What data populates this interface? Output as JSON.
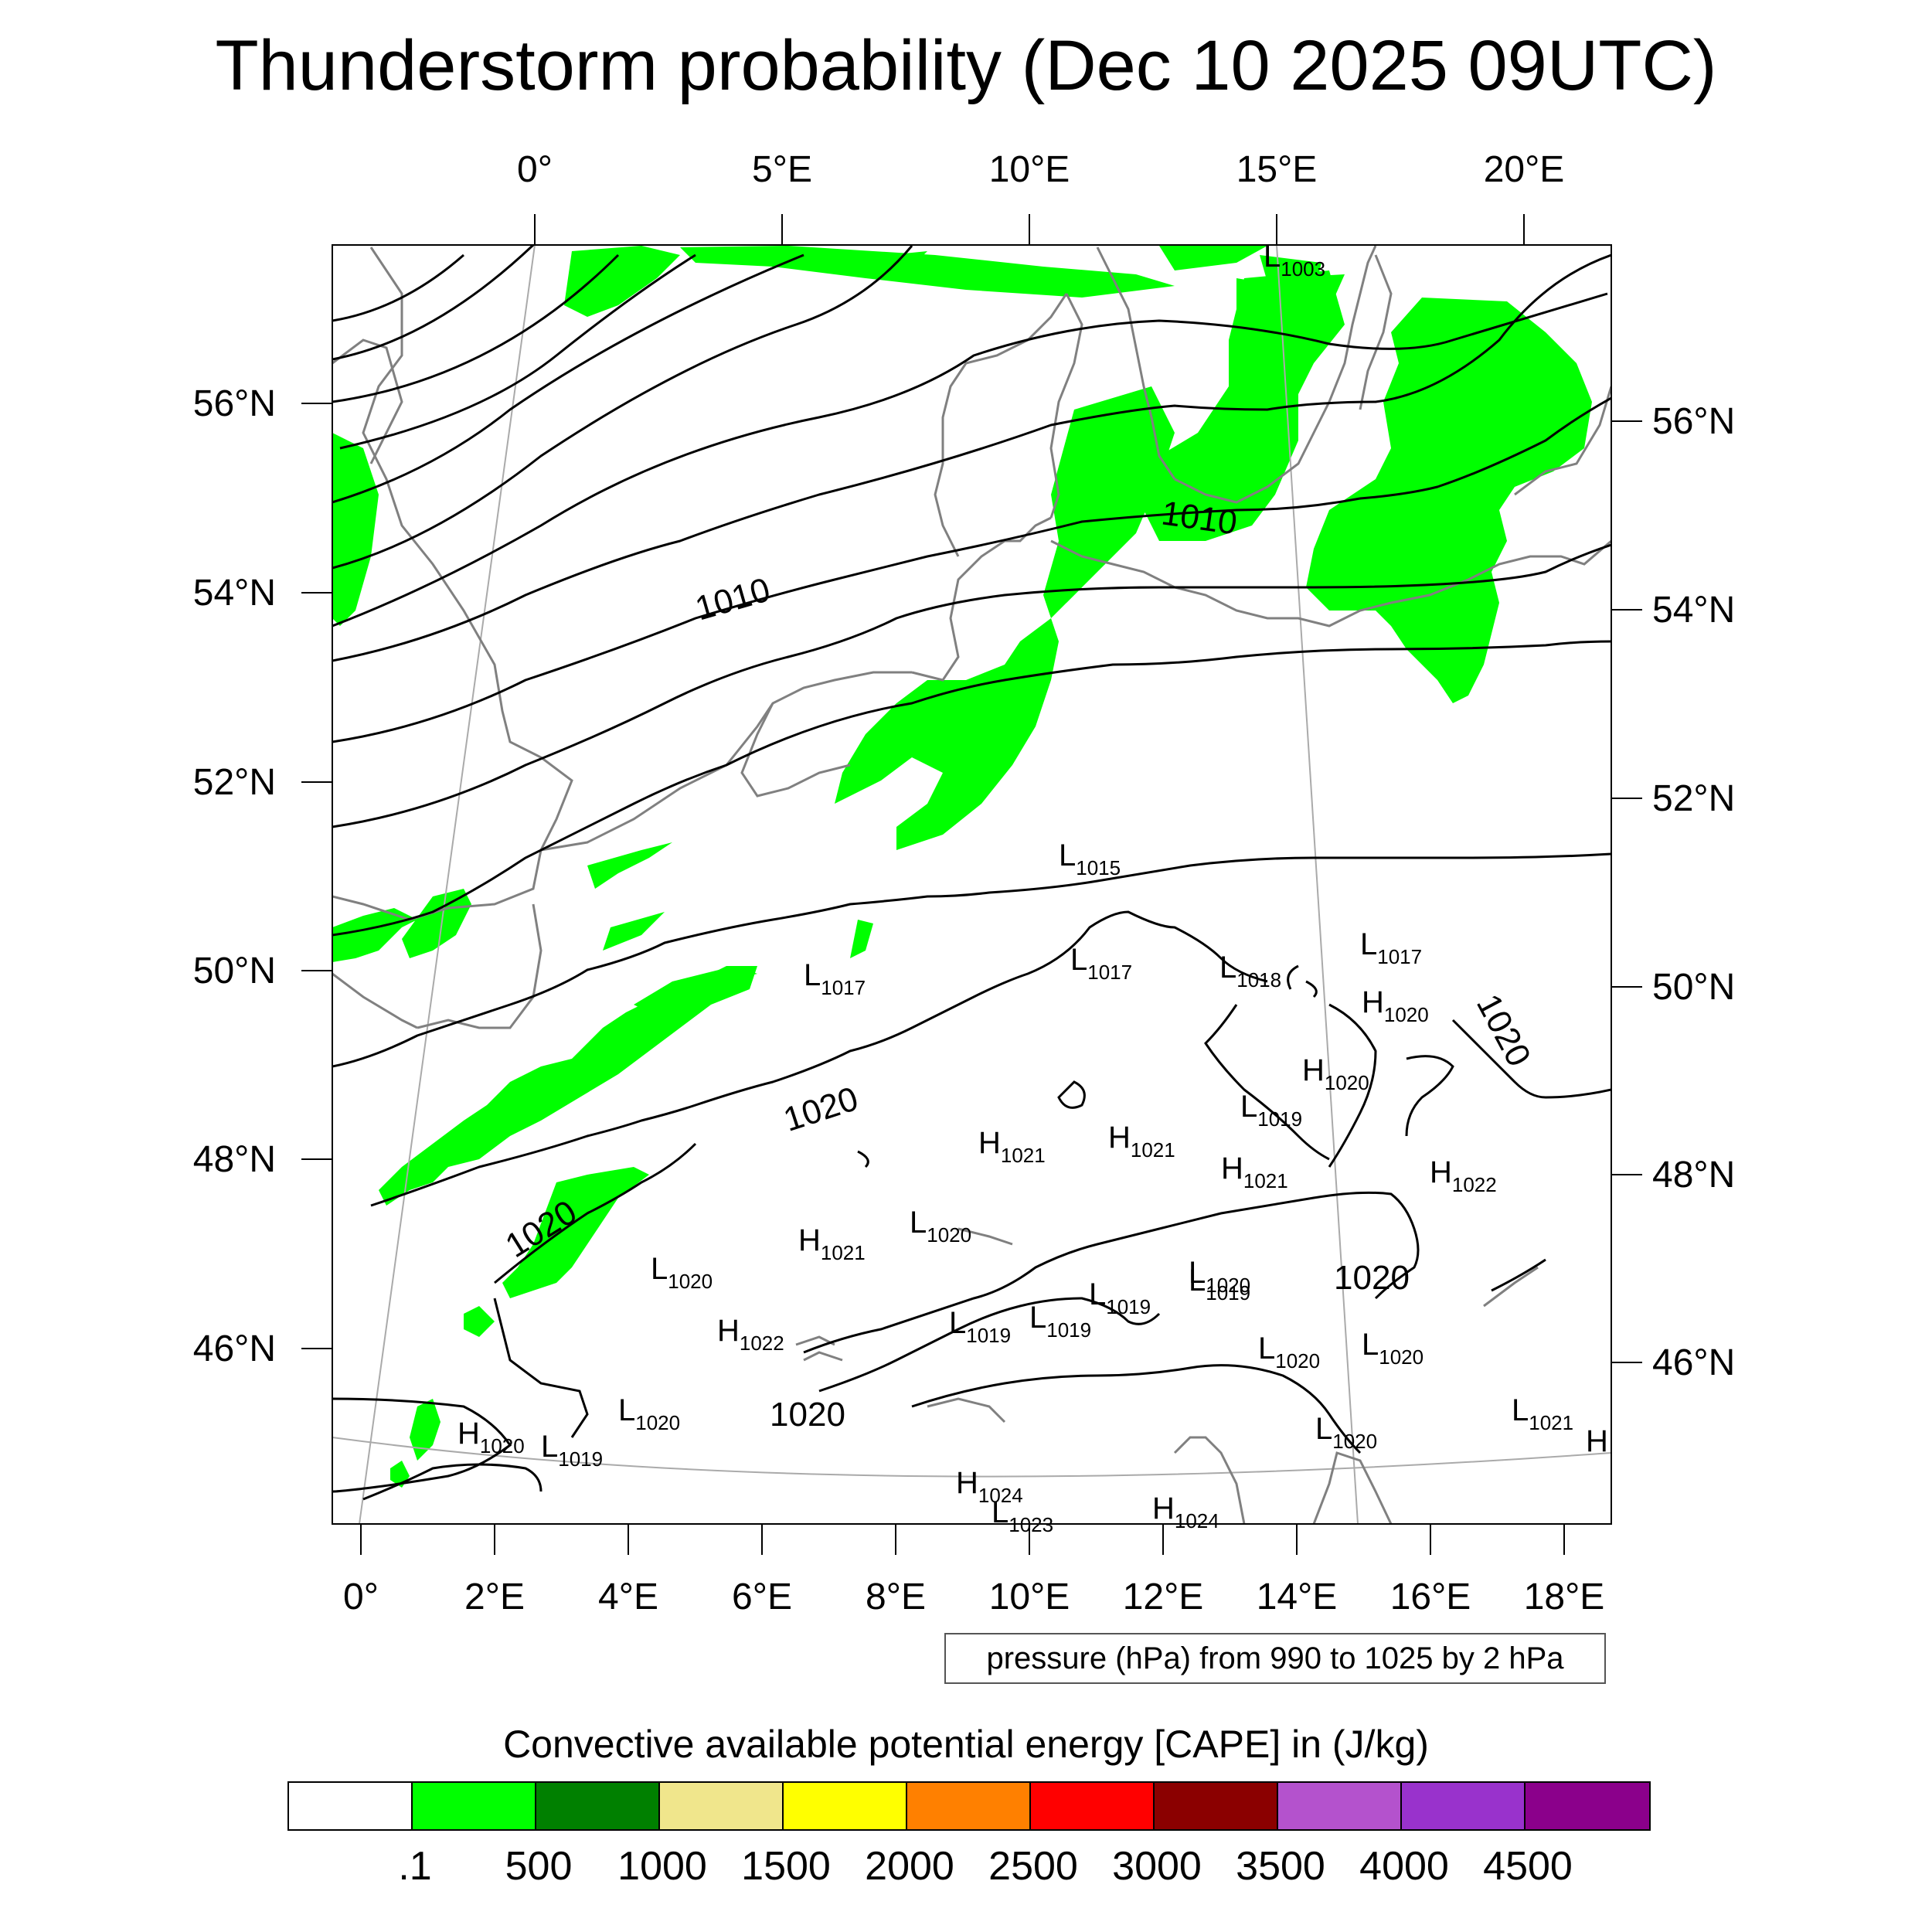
{
  "title": "Thunderstorm probability (Dec 10 2025 09UTC)",
  "top_lon_labels": [
    "0°",
    "5°E",
    "10°E",
    "15°E",
    "20°E"
  ],
  "bottom_lon_labels": [
    "0°",
    "2°E",
    "4°E",
    "6°E",
    "8°E",
    "10°E",
    "12°E",
    "14°E",
    "16°E",
    "18°E"
  ],
  "left_lat_labels": [
    "56°N",
    "54°N",
    "52°N",
    "50°N",
    "48°N",
    "46°N"
  ],
  "right_lat_labels": [
    "56°N",
    "54°N",
    "52°N",
    "50°N",
    "48°N",
    "46°N"
  ],
  "contour_labels": [
    "1010",
    "1010",
    "1020",
    "1020",
    "1020",
    "1020",
    "1020"
  ],
  "pressure_centers": [
    {
      "t": "L",
      "v": "1003"
    },
    {
      "t": "L",
      "v": "1015"
    },
    {
      "t": "L",
      "v": "1017"
    },
    {
      "t": "L",
      "v": "1017"
    },
    {
      "t": "L",
      "v": "1018"
    },
    {
      "t": "L",
      "v": "1017"
    },
    {
      "t": "H",
      "v": "1020"
    },
    {
      "t": "H",
      "v": "1020"
    },
    {
      "t": "L",
      "v": "1019"
    },
    {
      "t": "H",
      "v": "1021"
    },
    {
      "t": "H",
      "v": "1021"
    },
    {
      "t": "H",
      "v": "1021"
    },
    {
      "t": "H",
      "v": "1022"
    },
    {
      "t": "L",
      "v": "1020"
    },
    {
      "t": "H",
      "v": "1021"
    },
    {
      "t": "L",
      "v": "1020"
    },
    {
      "t": "L",
      "v": "1020"
    },
    {
      "t": "L",
      "v": "1019"
    },
    {
      "t": "L",
      "v": "1019"
    },
    {
      "t": "L",
      "v": "1019"
    },
    {
      "t": "L",
      "v": "1019"
    },
    {
      "t": "H",
      "v": "1022"
    },
    {
      "t": "L",
      "v": "1020"
    },
    {
      "t": "L",
      "v": "1020"
    },
    {
      "t": "L",
      "v": "1020"
    },
    {
      "t": "H",
      "v": "1020"
    },
    {
      "t": "L",
      "v": "1019"
    },
    {
      "t": "L",
      "v": "1020"
    },
    {
      "t": "L",
      "v": "1021"
    },
    {
      "t": "H",
      "v": "1024"
    },
    {
      "t": "L",
      "v": "1023"
    },
    {
      "t": "H",
      "v": "1024"
    },
    {
      "t": "H",
      "v": ""
    }
  ],
  "info_text": "pressure (hPa) from 990 to 1025 by 2 hPa",
  "colorbar": {
    "title": "Convective available potential energy [CAPE] in (J/kg)",
    "colors": [
      "#ffffff",
      "#00ff00",
      "#008000",
      "#f0e68c",
      "#ffff00",
      "#ff8000",
      "#ff0000",
      "#8b0000",
      "#b452cd",
      "#9932cc",
      "#8b008b"
    ],
    "labels": [
      ".1",
      "500",
      "1000",
      "1500",
      "2000",
      "2500",
      "3000",
      "3500",
      "4000",
      "4500"
    ]
  },
  "colors": {
    "cape_green": "#00ff00",
    "coastline": "#808080",
    "isobar": "#000000",
    "gridline": "#aaaaaa"
  }
}
